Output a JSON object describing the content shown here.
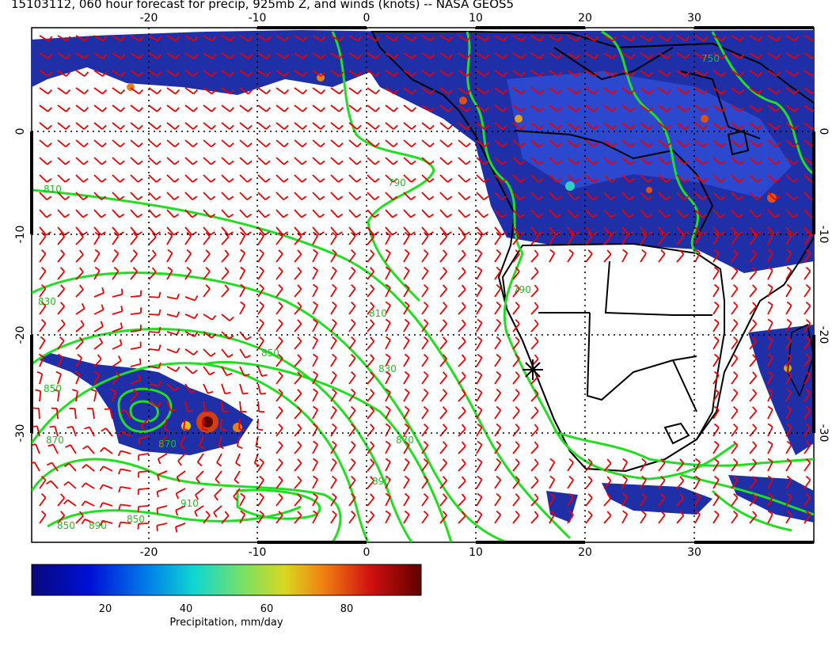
{
  "title": "15103112, 060 hour forecast for precip, 925mb Z, and winds (knots) -- NASA GEOS5",
  "map": {
    "lon_ticks": [
      "-20",
      "-10",
      "0",
      "10",
      "20",
      "30"
    ],
    "lat_ticks": [
      "0",
      "-10",
      "-20",
      "-30"
    ],
    "contour_labels": [
      "810",
      "790",
      "810",
      "830",
      "850",
      "870",
      "830",
      "850",
      "850",
      "870",
      "890",
      "910",
      "890",
      "870",
      "850",
      "790",
      "750"
    ],
    "colors": {
      "precip_dark": "#1a2a9a",
      "precip_mid": "#2e4fd8",
      "contour": "#22dd22",
      "barb": "#ee0000",
      "land_outline": "#000000"
    }
  },
  "colorbar": {
    "label": "Precipitation, mm/day",
    "ticks": [
      "20",
      "40",
      "60",
      "80"
    ],
    "range": [
      0,
      100
    ]
  }
}
